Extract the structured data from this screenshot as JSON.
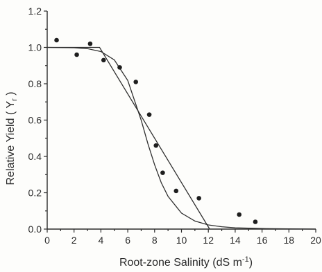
{
  "chart_data": {
    "type": "scatter",
    "xlabel": "Root-zone Salinity (dS m",
    "xlabel_sup": "-1",
    "xlabel_end": ")",
    "ylabel": "Relative Yield ( Y",
    "ylabel_sub": "r",
    "ylabel_end": " )",
    "xlim": [
      0,
      20
    ],
    "ylim": [
      0,
      1.2
    ],
    "x_ticks": [
      0,
      2,
      4,
      6,
      8,
      10,
      12,
      14,
      16,
      18,
      20
    ],
    "y_ticks": [
      0.0,
      0.2,
      0.4,
      0.6,
      0.8,
      1.0,
      1.2
    ],
    "x_tick_labels": [
      "0",
      "2",
      "4",
      "6",
      "8",
      "10",
      "12",
      "14",
      "16",
      "18",
      "20"
    ],
    "y_tick_labels": [
      "0.0",
      "0.2",
      "0.4",
      "0.6",
      "0.8",
      "1.0",
      "1.2"
    ],
    "grid": false,
    "series": [
      {
        "type": "scatter",
        "x": [
          0.7,
          2.2,
          3.2,
          4.2,
          5.4,
          6.6,
          7.6,
          8.1,
          8.6,
          9.6,
          11.3,
          14.3,
          15.5
        ],
        "y": [
          1.04,
          0.96,
          1.02,
          0.93,
          0.89,
          0.81,
          0.63,
          0.46,
          0.31,
          0.21,
          0.17,
          0.08,
          0.04
        ]
      },
      {
        "type": "line",
        "x": [
          0,
          3.9,
          12.1
        ],
        "y": [
          1.0,
          1.0,
          0.0
        ]
      },
      {
        "type": "line",
        "x": [
          0,
          2,
          3,
          4,
          5,
          6,
          7,
          7.5,
          8,
          8.5,
          9,
          10,
          11,
          12,
          13,
          14,
          16,
          18,
          20
        ],
        "y": [
          1.0,
          0.998,
          0.993,
          0.977,
          0.931,
          0.818,
          0.6,
          0.47,
          0.354,
          0.254,
          0.18,
          0.088,
          0.044,
          0.023,
          0.013,
          0.007,
          0.003,
          0.001,
          0.0
        ]
      }
    ]
  }
}
